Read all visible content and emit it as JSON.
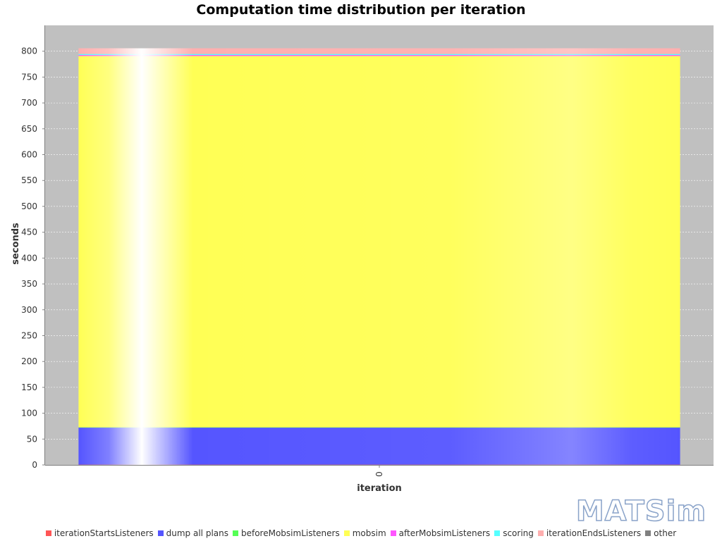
{
  "chart_data": {
    "type": "bar",
    "stacked": true,
    "title": "Computation time distribution per iteration",
    "xlabel": "iteration",
    "ylabel": "seconds",
    "categories": [
      "0"
    ],
    "ylim": [
      0,
      850
    ],
    "yticks": [
      0,
      50,
      100,
      150,
      200,
      250,
      300,
      350,
      400,
      450,
      500,
      550,
      600,
      650,
      700,
      750,
      800
    ],
    "grid": true,
    "legend_position": "bottom",
    "plot_background": "#c0c0c0",
    "series": [
      {
        "name": "iterationStartsListeners",
        "color": "#ff5555",
        "values": [
          0.5
        ]
      },
      {
        "name": "dump all plans",
        "color": "#5555ff",
        "values": [
          72
        ]
      },
      {
        "name": "beforeMobsimListeners",
        "color": "#55ff55",
        "values": [
          0.2
        ]
      },
      {
        "name": "mobsim",
        "color": "#ffff55",
        "values": [
          718
        ]
      },
      {
        "name": "afterMobsimListeners",
        "color": "#ff55ff",
        "values": [
          2
        ]
      },
      {
        "name": "scoring",
        "color": "#55ffff",
        "values": [
          2
        ]
      },
      {
        "name": "iterationEndsListeners",
        "color": "#ffafaf",
        "values": [
          11
        ]
      },
      {
        "name": "other",
        "color": "#808080",
        "values": [
          0
        ]
      }
    ]
  },
  "watermark": "MATSim"
}
